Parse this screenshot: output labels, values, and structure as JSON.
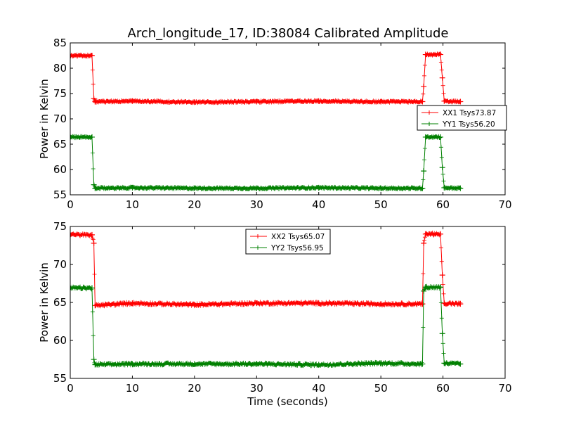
{
  "chart_data": [
    {
      "type": "line",
      "title": "Arch_longitude_17, ID:38084 Calibrated Amplitude",
      "xlabel": "",
      "ylabel": "Power in Kelvin",
      "xlim": [
        0,
        70
      ],
      "ylim": [
        55,
        85
      ],
      "xticks": [
        "0",
        "10",
        "20",
        "30",
        "40",
        "50",
        "60",
        "70"
      ],
      "yticks": [
        "55",
        "60",
        "65",
        "70",
        "75",
        "80",
        "85"
      ],
      "grid": false,
      "legend_position": "center-right",
      "series": [
        {
          "name": "XX1 Tsys73.87",
          "color": "#ff0000",
          "x": [
            0,
            3.5,
            3.8,
            4.0,
            10,
            20,
            30,
            40,
            50,
            56.7,
            56.9,
            57.2,
            59.6,
            59.9,
            60.2,
            62.8
          ],
          "y": [
            82.5,
            82.5,
            74.0,
            73.4,
            73.5,
            73.3,
            73.4,
            73.5,
            73.4,
            73.4,
            76.4,
            82.7,
            82.7,
            78.1,
            73.5,
            73.4
          ]
        },
        {
          "name": "YY1 Tsys56.20",
          "color": "#008000",
          "x": [
            0,
            3.5,
            3.8,
            4.0,
            10,
            20,
            30,
            40,
            50,
            56.7,
            56.9,
            57.2,
            59.6,
            59.9,
            60.2,
            62.8
          ],
          "y": [
            66.4,
            66.4,
            57.0,
            56.3,
            56.4,
            56.3,
            56.3,
            56.4,
            56.3,
            56.3,
            59.7,
            66.4,
            66.4,
            60.4,
            56.4,
            56.3
          ]
        }
      ]
    },
    {
      "type": "line",
      "title": "",
      "xlabel": "Time (seconds)",
      "ylabel": "Power in Kelvin",
      "xlim": [
        0,
        70
      ],
      "ylim": [
        55,
        75
      ],
      "xticks": [
        "0",
        "10",
        "20",
        "30",
        "40",
        "50",
        "60",
        "70"
      ],
      "yticks": [
        "55",
        "60",
        "65",
        "70",
        "75"
      ],
      "grid": false,
      "legend_position": "top-center",
      "series": [
        {
          "name": "XX2 Tsys65.07",
          "color": "#ff0000",
          "x": [
            0,
            3.5,
            3.8,
            4.0,
            10,
            20,
            30,
            40,
            50,
            56.7,
            56.9,
            57.2,
            59.6,
            59.9,
            60.2,
            62.8
          ],
          "y": [
            73.9,
            73.9,
            72.8,
            64.6,
            64.9,
            64.7,
            64.9,
            64.9,
            64.8,
            64.8,
            72.8,
            74.0,
            74.0,
            68.6,
            64.9,
            64.8
          ]
        },
        {
          "name": "YY2 Tsys56.95",
          "color": "#008000",
          "x": [
            0,
            3.5,
            3.8,
            4.0,
            10,
            20,
            30,
            40,
            50,
            56.7,
            56.9,
            57.2,
            59.6,
            59.9,
            60.2,
            62.8
          ],
          "y": [
            66.9,
            66.9,
            57.5,
            56.8,
            56.9,
            56.9,
            56.9,
            56.8,
            57.0,
            56.9,
            66.5,
            67.0,
            67.0,
            60.9,
            57.0,
            56.9
          ]
        }
      ]
    }
  ]
}
